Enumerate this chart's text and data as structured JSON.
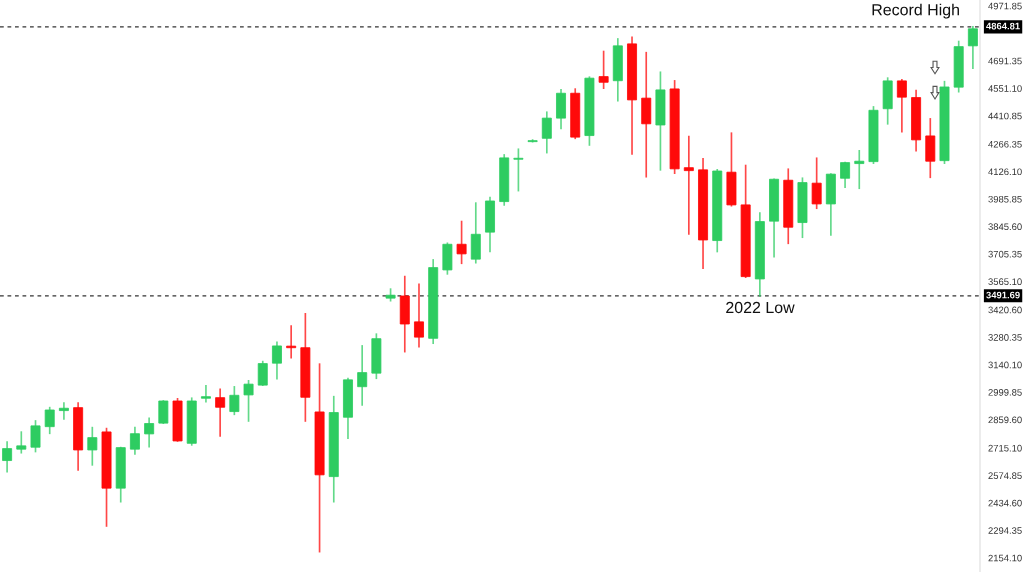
{
  "chart_data": {
    "type": "candlestick",
    "categories": [
      null,
      null,
      null,
      null,
      null,
      null,
      null,
      null,
      null,
      null,
      null,
      null,
      null,
      null,
      null,
      null,
      null,
      null,
      null,
      null,
      null,
      null,
      null,
      null,
      null,
      null,
      null,
      null,
      null,
      null,
      null,
      null,
      null,
      null,
      null,
      null,
      null,
      null,
      null,
      null,
      null,
      null,
      null,
      null,
      null,
      null,
      null,
      null,
      null,
      null,
      null,
      null,
      null,
      null,
      null,
      null,
      null,
      null,
      null,
      null,
      null,
      null,
      null,
      null,
      null,
      null,
      null,
      null,
      null
    ],
    "ohlc": [
      [
        2651,
        2745,
        2594,
        2712
      ],
      [
        2709,
        2796,
        2691,
        2726
      ],
      [
        2719,
        2853,
        2697,
        2828
      ],
      [
        2824,
        2921,
        2790,
        2909
      ],
      [
        2906,
        2944,
        2863,
        2918
      ],
      [
        2921,
        2944,
        2603,
        2705
      ],
      [
        2705,
        2819,
        2629,
        2768
      ],
      [
        2797,
        2814,
        2317,
        2510
      ],
      [
        2510,
        2717,
        2441,
        2717
      ],
      [
        2709,
        2819,
        2685,
        2788
      ],
      [
        2787,
        2867,
        2722,
        2840
      ],
      [
        2842,
        2955,
        2842,
        2955
      ],
      [
        2955,
        2966,
        2751,
        2751
      ],
      [
        2739,
        2969,
        2731,
        2955
      ],
      [
        2969,
        3032,
        2952,
        2977
      ],
      [
        2972,
        3015,
        2777,
        2923
      ],
      [
        2901,
        3027,
        2887,
        2984
      ],
      [
        2986,
        3058,
        2853,
        3041
      ],
      [
        3036,
        3156,
        3036,
        3146
      ],
      [
        3148,
        3255,
        3069,
        3236
      ],
      [
        3235,
        3338,
        3176,
        3227
      ],
      [
        3227,
        3400,
        2853,
        2974
      ],
      [
        2899,
        3143,
        2186,
        2578
      ],
      [
        2569,
        2977,
        2441,
        2896
      ],
      [
        2872,
        3069,
        2765,
        3063
      ],
      [
        3028,
        3236,
        2935,
        3100
      ],
      [
        3097,
        3296,
        3071,
        3273
      ],
      [
        3480,
        3526,
        3467,
        3495
      ],
      [
        3491,
        3590,
        3207,
        3348
      ],
      [
        3359,
        3551,
        3232,
        3281
      ],
      [
        3275,
        3675,
        3250,
        3636
      ],
      [
        3624,
        3760,
        3604,
        3755
      ],
      [
        3755,
        3871,
        3658,
        3706
      ],
      [
        3679,
        3965,
        3661,
        3806
      ],
      [
        3817,
        3993,
        3718,
        3976
      ],
      [
        3973,
        4211,
        3956,
        4196
      ],
      [
        4189,
        4240,
        4029,
        4194
      ],
      [
        4279,
        4287,
        4279,
        4284
      ],
      [
        4296,
        4429,
        4223,
        4399
      ],
      [
        4399,
        4543,
        4347,
        4526
      ],
      [
        4526,
        4547,
        4296,
        4302
      ],
      [
        4310,
        4608,
        4262,
        4603
      ],
      [
        4611,
        4739,
        4552,
        4582
      ],
      [
        4590,
        4803,
        4488,
        4768
      ],
      [
        4778,
        4812,
        4216,
        4492
      ],
      [
        4501,
        4733,
        4100,
        4370
      ],
      [
        4364,
        4633,
        4135,
        4543
      ],
      [
        4548,
        4589,
        4118,
        4140
      ],
      [
        4146,
        4305,
        3808,
        4131
      ],
      [
        4135,
        4191,
        3633,
        3777
      ],
      [
        3774,
        4135,
        3718,
        4129
      ],
      [
        4123,
        4322,
        3952,
        3956
      ],
      [
        3956,
        4157,
        3587,
        3590
      ],
      [
        3578,
        3914,
        3491.69,
        3871
      ],
      [
        3873,
        4087,
        3692,
        4087
      ],
      [
        4082,
        4138,
        3760,
        3842
      ],
      [
        3866,
        4092,
        3791,
        4070
      ],
      [
        4067,
        4194,
        3939,
        3961
      ],
      [
        3961,
        4113,
        3803,
        4113
      ],
      [
        4092,
        4172,
        4046,
        4172
      ],
      [
        4167,
        4232,
        4041,
        4179
      ],
      [
        4177,
        4456,
        4169,
        4439
      ],
      [
        4447,
        4603,
        4370,
        4589
      ],
      [
        4589,
        4594,
        4330,
        4506
      ],
      [
        4504,
        4539,
        4233,
        4288
      ],
      [
        4308,
        4395,
        4097,
        4179
      ],
      [
        4182,
        4585,
        4169,
        4558
      ],
      [
        4557,
        4790,
        4534,
        4764
      ],
      [
        4768,
        4864.81,
        4654,
        4855
      ]
    ],
    "colors": [
      "#2ecc61",
      "#2ecc61",
      "#2ecc61",
      "#2ecc61",
      "#2ecc61",
      "#ff0a0a",
      "#2ecc61",
      "#ff0a0a",
      "#2ecc61",
      "#2ecc61",
      "#2ecc61",
      "#2ecc61",
      "#ff0a0a",
      "#2ecc61",
      "#2ecc61",
      "#ff0a0a",
      "#2ecc61",
      "#2ecc61",
      "#2ecc61",
      "#2ecc61",
      "#ff0a0a",
      "#ff0a0a",
      "#ff0a0a",
      "#2ecc61",
      "#2ecc61",
      "#2ecc61",
      "#2ecc61",
      "#2ecc61",
      "#ff0a0a",
      "#ff0a0a",
      "#2ecc61",
      "#2ecc61",
      "#ff0a0a",
      "#2ecc61",
      "#2ecc61",
      "#2ecc61",
      "#2ecc61",
      "#2ecc61",
      "#2ecc61",
      "#2ecc61",
      "#ff0a0a",
      "#2ecc61",
      "#ff0a0a",
      "#2ecc61",
      "#ff0a0a",
      "#ff0a0a",
      "#2ecc61",
      "#ff0a0a",
      "#ff0a0a",
      "#ff0a0a",
      "#2ecc61",
      "#ff0a0a",
      "#ff0a0a",
      "#2ecc61",
      "#2ecc61",
      "#ff0a0a",
      "#2ecc61",
      "#ff0a0a",
      "#2ecc61",
      "#2ecc61",
      "#2ecc61",
      "#2ecc61",
      "#2ecc61",
      "#ff0a0a",
      "#ff0a0a",
      "#ff0a0a",
      "#2ecc61",
      "#2ecc61",
      "#2ecc61"
    ],
    "ylim": [
      2082,
      5002
    ],
    "yticks": [
      4971.85,
      {
        "value": 4691.35,
        "label": "4691.35"
      },
      {
        "value": 4551.1,
        "label": "4551.10"
      },
      4410.85,
      4266.35,
      {
        "value": 4126.1,
        "label": "4126.10"
      },
      3985.85,
      {
        "value": 3845.6,
        "label": "3845.60"
      },
      3705.35,
      {
        "value": 3565.1,
        "label": "3565.10"
      },
      {
        "value": 3420.6,
        "label": "3420.60"
      },
      3280.35,
      {
        "value": 3140.1,
        "label": "3140.10"
      },
      2999.85,
      {
        "value": 2859.6,
        "label": "2859.60"
      },
      {
        "value": 2715.1,
        "label": "2715.10"
      },
      2574.85,
      {
        "value": 2434.6,
        "label": "2434.60"
      },
      2294.35,
      {
        "value": 2154.1,
        "label": "2154.10"
      }
    ],
    "ref_lines": [
      {
        "axis": "y",
        "value": 4864.81,
        "label": "4864.81",
        "color": "#333333",
        "line_style": "dashed"
      },
      {
        "axis": "y",
        "value": 3491.69,
        "label": "3491.69",
        "color": "#333333",
        "line_style": "dashed"
      }
    ],
    "annotations": [
      {
        "text": "Record High",
        "y": 4864.81
      },
      {
        "text": "2022 Low",
        "y": 3491.69
      }
    ],
    "grid": false
  }
}
